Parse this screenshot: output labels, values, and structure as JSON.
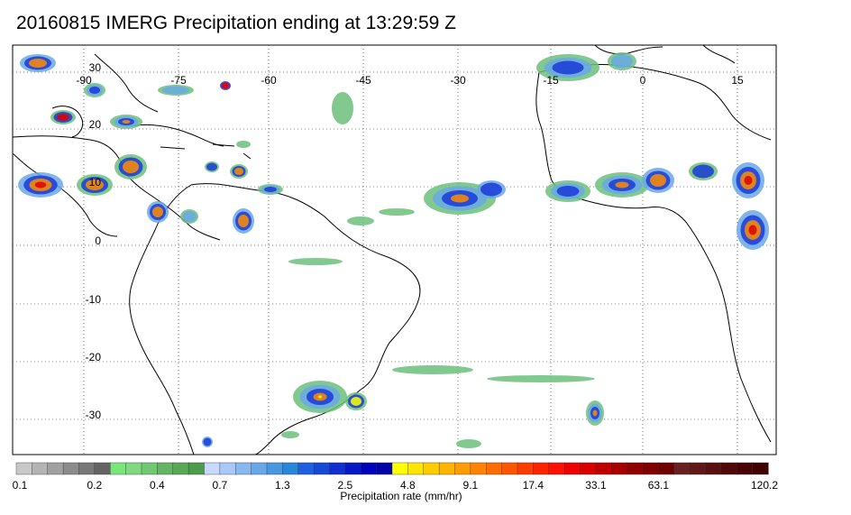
{
  "title": "20160815 IMERG Precipitation ending at 13:29:59 Z",
  "map": {
    "lon_labels": [
      "-90",
      "-75",
      "-60",
      "-45",
      "-30",
      "-15",
      "0",
      "15"
    ],
    "lat_labels": [
      "30",
      "20",
      "10",
      "0",
      "-10",
      "-20",
      "-30"
    ],
    "gridlines": true
  },
  "colorbar": {
    "title": "Precipitation rate (mm/hr)",
    "tick_labels": [
      "0.1",
      "0.2",
      "0.4",
      "0.7",
      "1.3",
      "2.5",
      "4.8",
      "9.1",
      "17.4",
      "33.1",
      "63.1",
      "120.2"
    ],
    "colors": [
      "#c8c8c8",
      "#b4b4b4",
      "#a0a0a0",
      "#8c8c8c",
      "#787878",
      "#646464",
      "#78e678",
      "#80d880",
      "#70c870",
      "#64b464",
      "#58a858",
      "#4c9c4c",
      "#c8d8ff",
      "#a8c8f8",
      "#88b8f0",
      "#68a8e8",
      "#4898e0",
      "#2888d8",
      "#2060e0",
      "#1848d8",
      "#1030d0",
      "#0818c8",
      "#0000c0",
      "#0000a8",
      "#ffff00",
      "#ffe600",
      "#ffcc00",
      "#ffb400",
      "#ff9c00",
      "#ff8400",
      "#ff6c00",
      "#ff5400",
      "#ff3c00",
      "#ff2400",
      "#ff1000",
      "#f00000",
      "#d80000",
      "#c00000",
      "#a80000",
      "#900000",
      "#800000",
      "#700000",
      "#682020",
      "#601818",
      "#581010",
      "#500808",
      "#480404",
      "#400000"
    ]
  }
}
